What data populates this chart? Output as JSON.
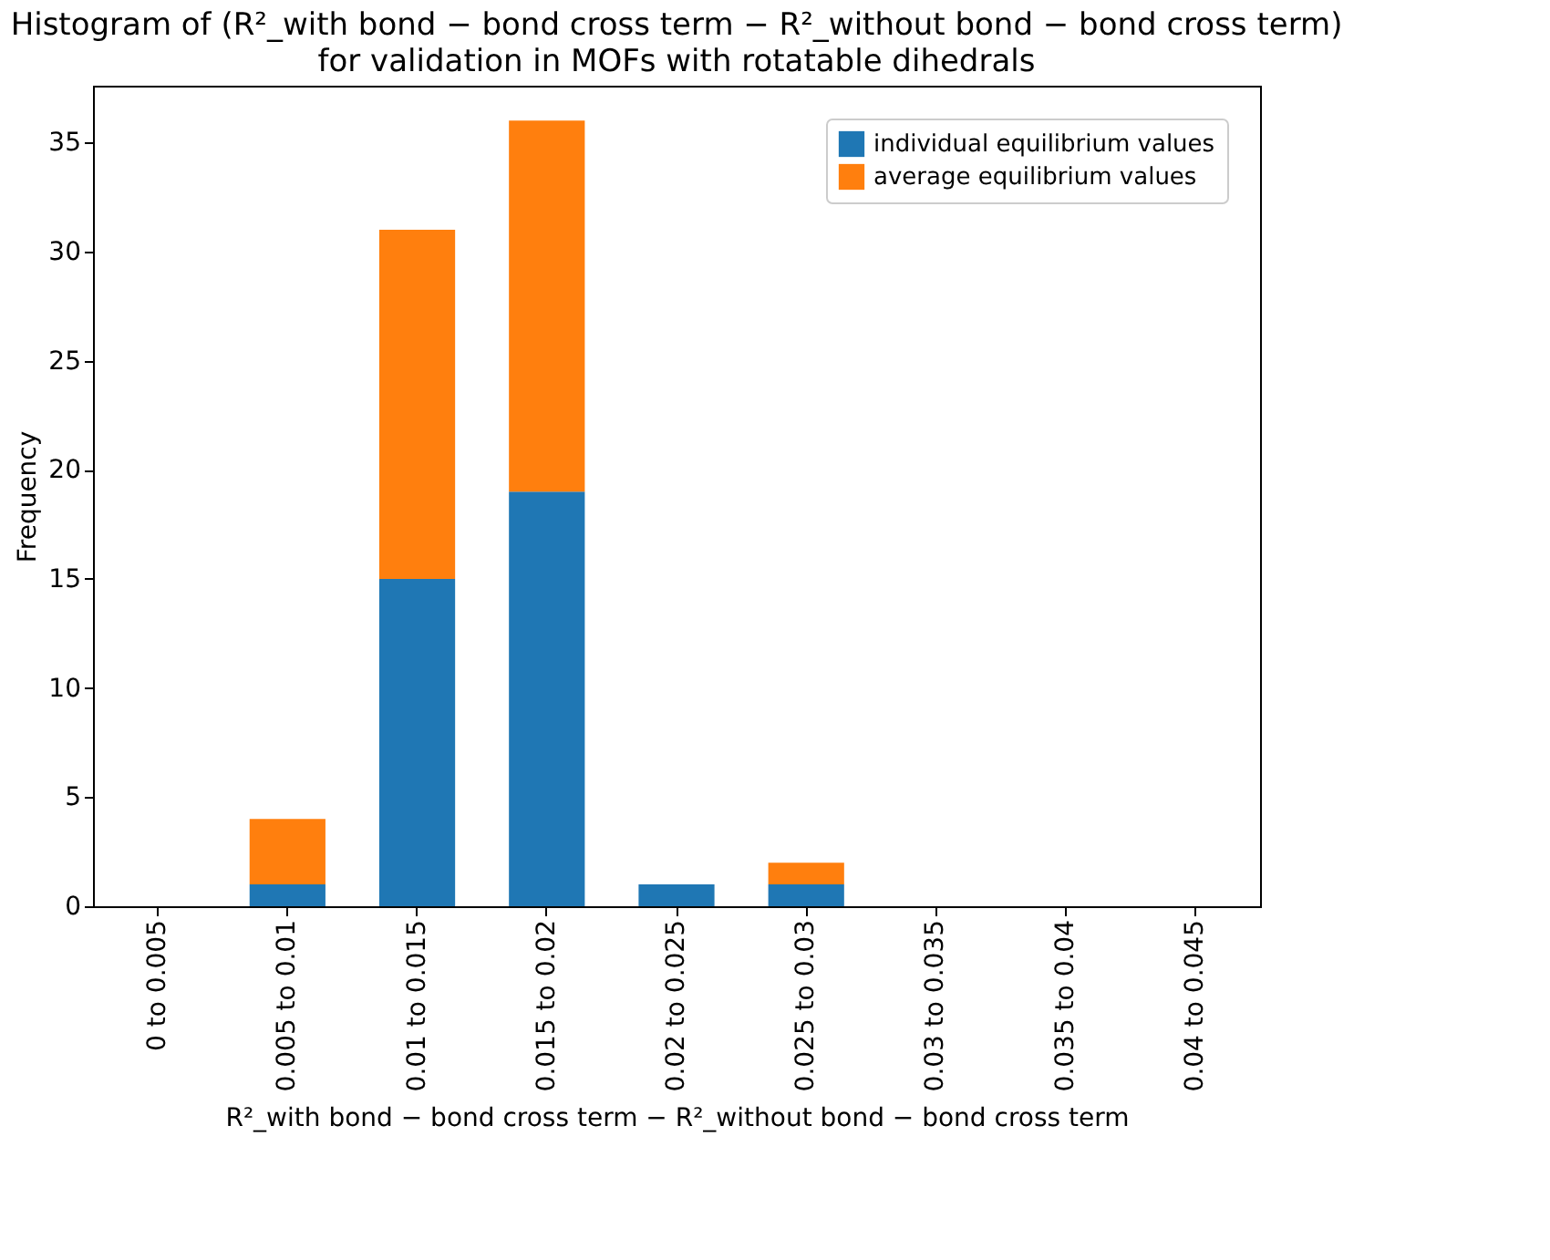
{
  "chart_data": {
    "type": "bar",
    "stacked": true,
    "title": "Histogram of (R²_with bond − bond cross term − R²_without bond − bond cross term)",
    "subtitle": "for validation in MOFs with rotatable dihedrals",
    "xlabel": "R²_with bond − bond cross term − R²_without bond − bond cross term",
    "ylabel": "Frequency",
    "categories": [
      "0 to 0.005",
      "0.005 to 0.01",
      "0.01 to 0.015",
      "0.015 to 0.02",
      "0.02 to 0.025",
      "0.025 to 0.03",
      "0.03 to 0.035",
      "0.035 to 0.04",
      "0.04 to 0.045"
    ],
    "series": [
      {
        "name": "individual equilibrium values",
        "color": "#1f77b4",
        "values": [
          0,
          1,
          15,
          19,
          1,
          1,
          0,
          0,
          0
        ]
      },
      {
        "name": "average equilibrium values",
        "color": "#ff7f0e",
        "values": [
          0,
          3,
          16,
          17,
          0,
          1,
          0,
          0,
          0
        ]
      }
    ],
    "ylim": [
      0,
      37.6
    ],
    "yticks": [
      0,
      5,
      10,
      15,
      20,
      25,
      30,
      35
    ],
    "legend": "top right",
    "grid": false
  }
}
